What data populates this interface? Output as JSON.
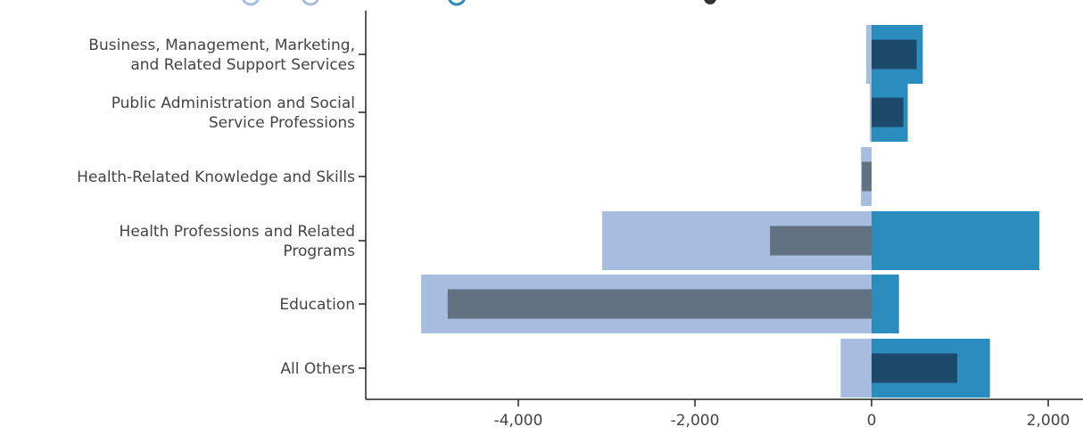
{
  "chart_data": {
    "type": "bar",
    "orientation": "horizontal",
    "categories": [
      [
        "Business, Management, Marketing,",
        "and Related Support Services"
      ],
      [
        "Public Administration and Social",
        "Service Professions"
      ],
      [
        "Health-Related Knowledge and Skills"
      ],
      [
        "Health Professions and Related",
        "Programs"
      ],
      [
        "Education"
      ],
      [
        "All Others"
      ]
    ],
    "series": [
      {
        "role": "decrease",
        "color": "#a7bddf",
        "values": [
          -60,
          -20,
          -120,
          -3050,
          -5100,
          -350
        ]
      },
      {
        "role": "net-decrease",
        "color": "#62717f",
        "values": [
          0,
          0,
          -110,
          -1150,
          -4800,
          0
        ]
      },
      {
        "role": "increase",
        "color": "#2b8cbe",
        "values": [
          580,
          410,
          0,
          1900,
          310,
          1340
        ]
      },
      {
        "role": "net-increase",
        "color": "#1c4a6b",
        "values": [
          510,
          360,
          0,
          0,
          0,
          970
        ]
      }
    ],
    "xlim": [
      -5400,
      2100
    ],
    "xticks": [
      -4000,
      -2000,
      0,
      2000
    ],
    "xtick_labels": [
      "-4,000",
      "-2,000",
      "0",
      "2,000"
    ],
    "grid": false,
    "legend": {
      "placement": "top",
      "markers": [
        "#a7bddf",
        "#a7bddf",
        "#2b8cbe"
      ]
    }
  }
}
